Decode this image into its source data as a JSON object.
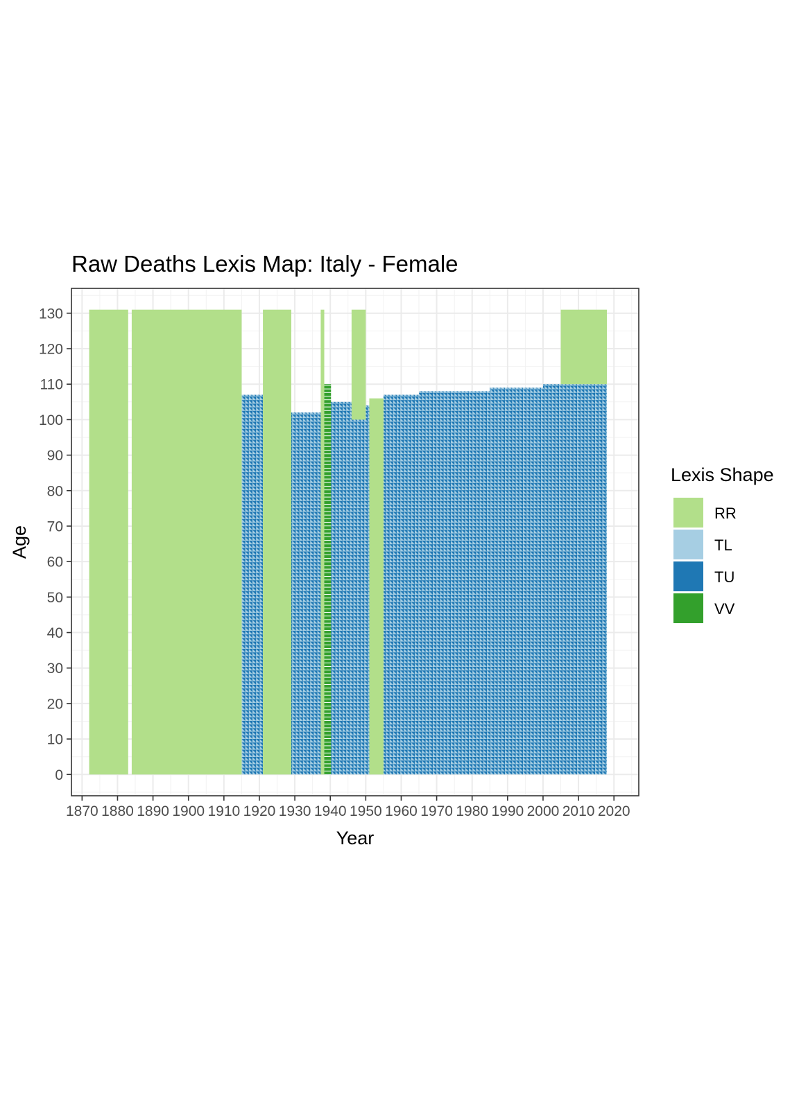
{
  "chart_data": {
    "type": "heatmap",
    "title": "Raw Deaths Lexis Map: Italy  - Female",
    "xlabel": "Year",
    "ylabel": "Age",
    "xlim": [
      1867,
      2027
    ],
    "ylim": [
      -6,
      137
    ],
    "x_ticks": [
      1870,
      1880,
      1890,
      1900,
      1910,
      1920,
      1930,
      1940,
      1950,
      1960,
      1970,
      1980,
      1990,
      2000,
      2010,
      2020
    ],
    "y_ticks": [
      0,
      10,
      20,
      30,
      40,
      50,
      60,
      70,
      80,
      90,
      100,
      110,
      120,
      130
    ],
    "grid": true,
    "legend": {
      "title": "Lexis Shape",
      "position": "right",
      "items": [
        {
          "label": "RR",
          "color": "#b2df8a"
        },
        {
          "label": "TL",
          "color": "#a6cee3"
        },
        {
          "label": "TU",
          "color": "#1f78b4"
        },
        {
          "label": "VV",
          "color": "#33a02c"
        }
      ]
    },
    "rr_blocks": [
      {
        "year_start": 1872,
        "year_end": 1883,
        "age_start": 0,
        "age_end": 131
      },
      {
        "year_start": 1884,
        "year_end": 1915,
        "age_start": 0,
        "age_end": 131
      },
      {
        "year_start": 1921,
        "year_end": 1929,
        "age_start": 0,
        "age_end": 131
      },
      {
        "year_start": 1937.3,
        "year_end": 1938.3,
        "age_start": 0,
        "age_end": 131
      },
      {
        "year_start": 1946,
        "year_end": 1950,
        "age_start": 100,
        "age_end": 131
      },
      {
        "year_start": 1951,
        "year_end": 1955,
        "age_start": 0,
        "age_end": 106
      },
      {
        "year_start": 2005,
        "year_end": 2018,
        "age_start": 110,
        "age_end": 131
      }
    ],
    "rr_gap": {
      "year_start": 1883,
      "year_end": 1884,
      "age_start": 106,
      "age_end": 131
    },
    "triangle_blocks": [
      {
        "year_start": 1915,
        "year_end": 1921,
        "age_start": 0,
        "age_end": 107
      },
      {
        "year_start": 1929,
        "year_end": 1937.3,
        "age_start": 0,
        "age_end": 102
      },
      {
        "year_start": 1938.3,
        "year_end": 1946,
        "age_start": 0,
        "age_end": 105
      },
      {
        "year_start": 1946,
        "year_end": 1950,
        "age_start": 0,
        "age_end": 100
      },
      {
        "year_start": 1950,
        "year_end": 1951,
        "age_start": 0,
        "age_end": 104
      },
      {
        "year_start": 1955,
        "year_end": 1965,
        "age_start": 0,
        "age_end": 107
      },
      {
        "year_start": 1965,
        "year_end": 1985,
        "age_start": 0,
        "age_end": 108
      },
      {
        "year_start": 1985,
        "year_end": 2000,
        "age_start": 0,
        "age_end": 109
      },
      {
        "year_start": 2000,
        "year_end": 2005,
        "age_start": 0,
        "age_end": 110
      },
      {
        "year_start": 2005,
        "year_end": 2018,
        "age_start": 0,
        "age_end": 110
      }
    ],
    "vv_column": {
      "year_start": 1938.3,
      "year_end": 1940.2,
      "age_start": 0,
      "age_end": 110
    }
  }
}
